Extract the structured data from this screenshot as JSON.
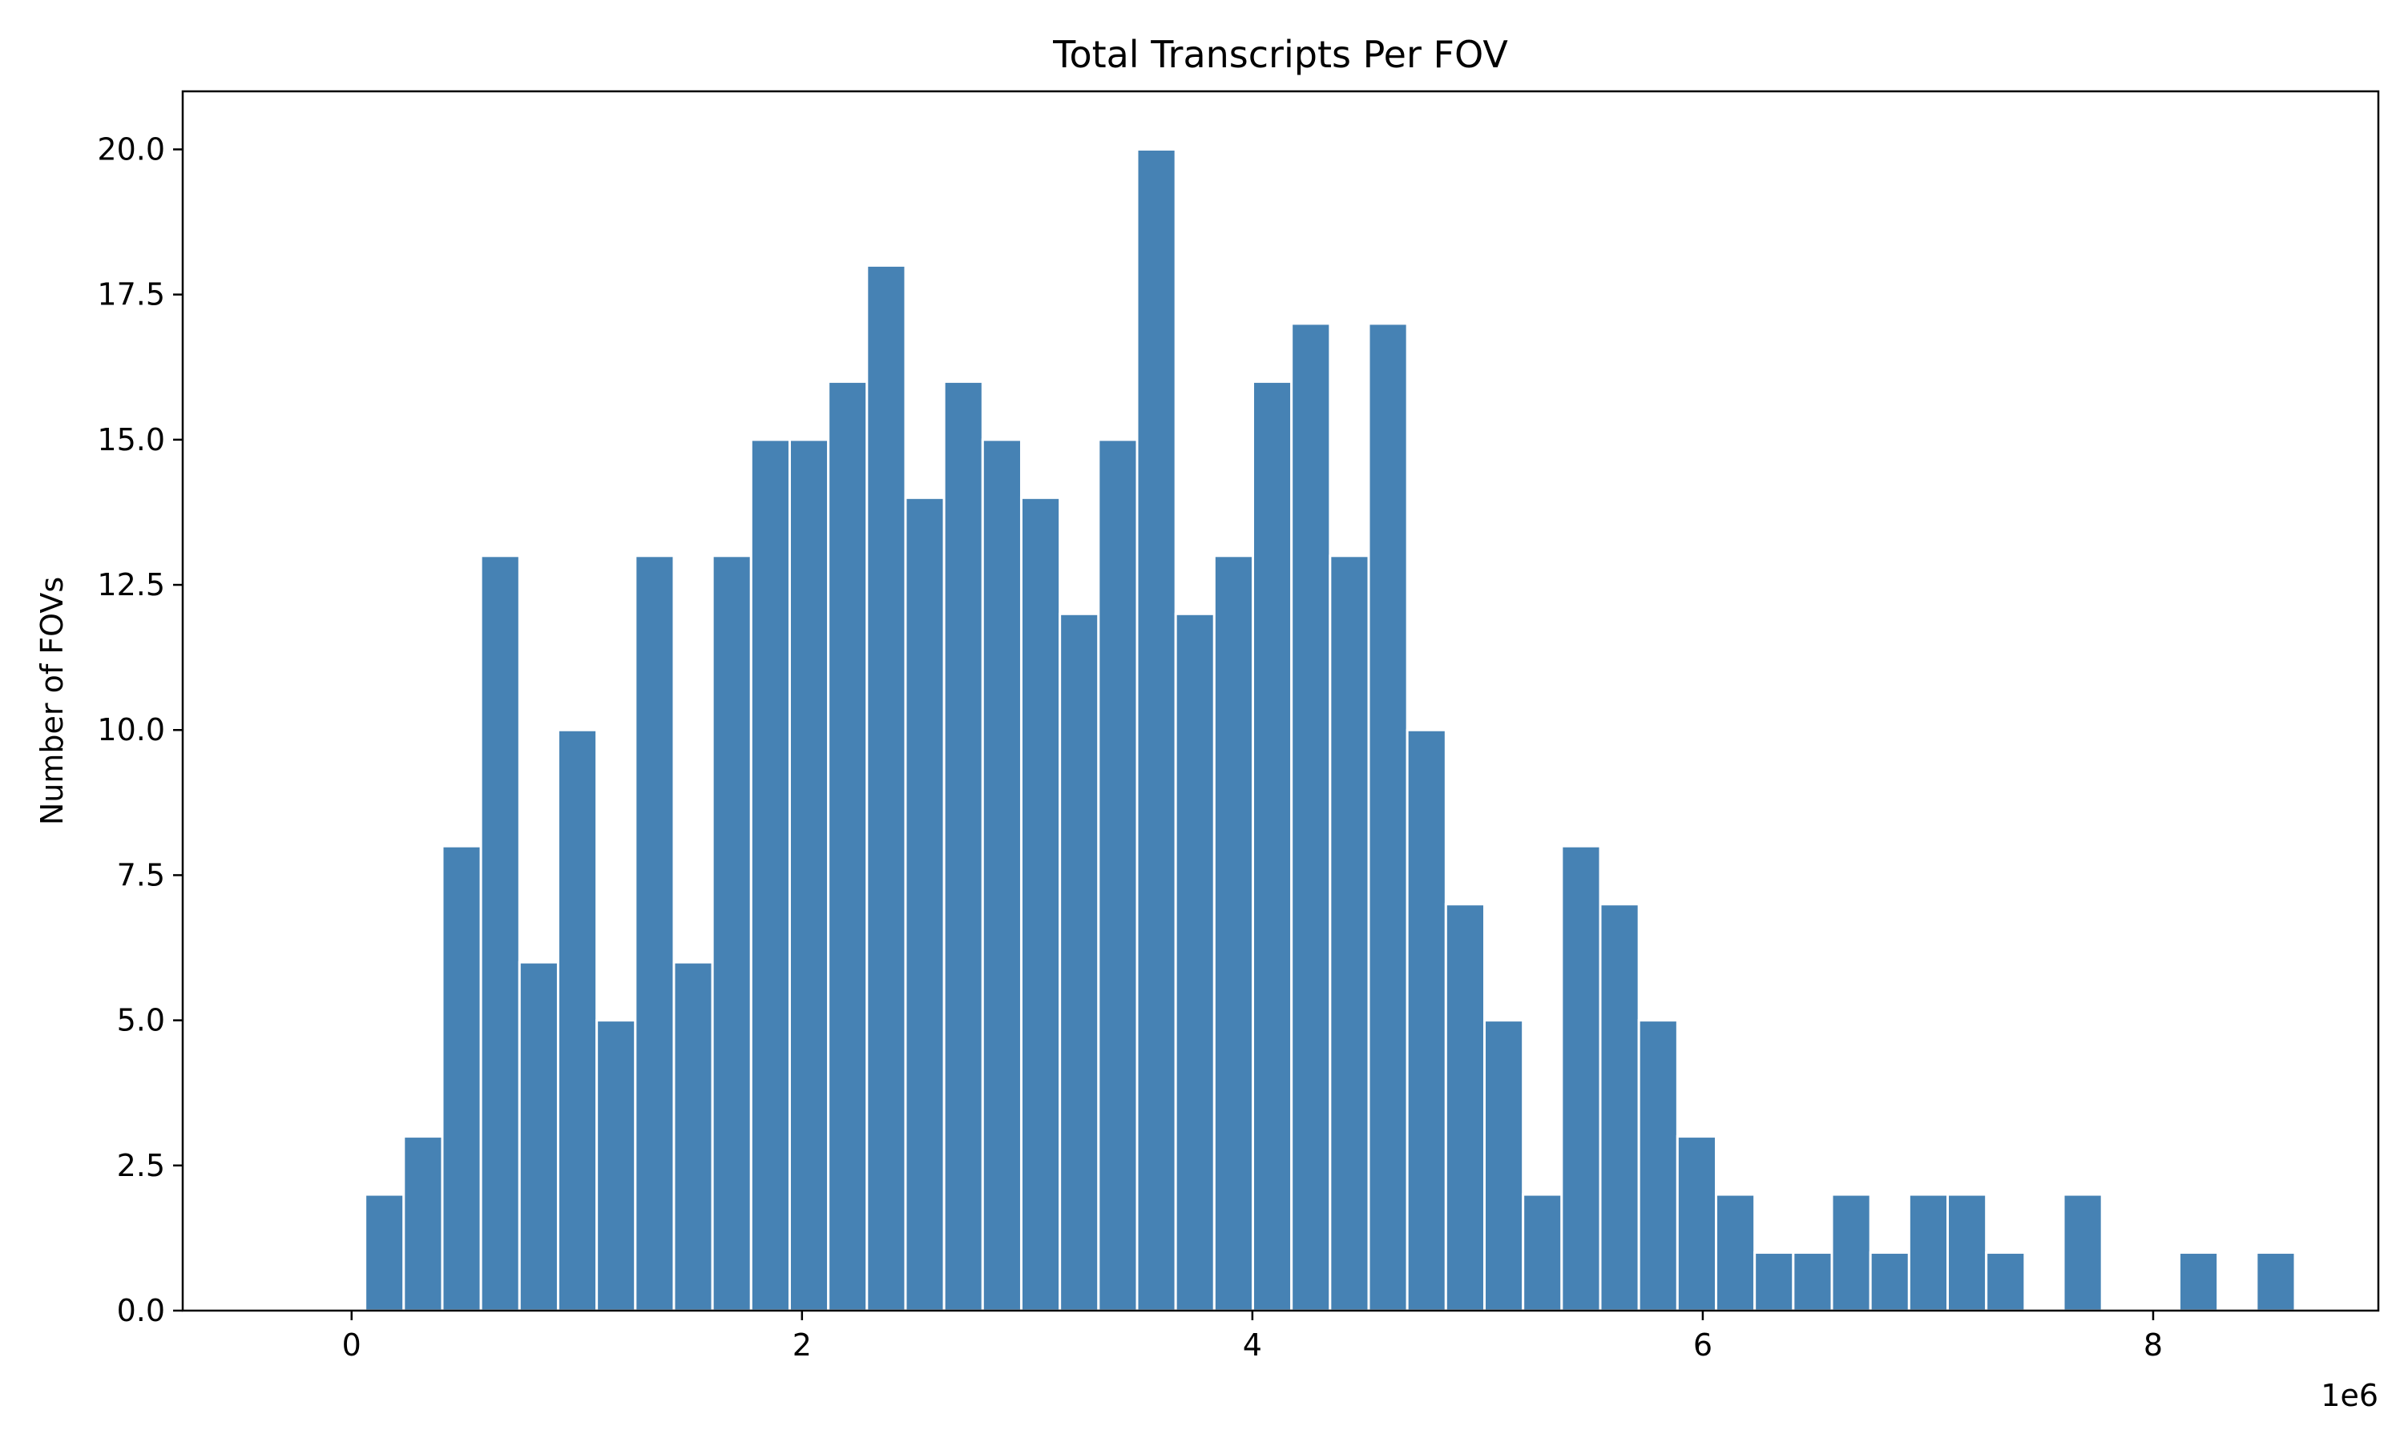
{
  "chart_data": {
    "type": "bar",
    "title": "Total Transcripts Per FOV",
    "xlabel": "",
    "ylabel": "Number of FOVs",
    "x_offset_label": "1e6",
    "xlim": [
      -0.75,
      9.0
    ],
    "ylim": [
      0,
      21.0
    ],
    "x_ticks": [
      0,
      2,
      4,
      6,
      8
    ],
    "x_tick_labels": [
      "0",
      "2",
      "4",
      "6",
      "8"
    ],
    "y_ticks": [
      0,
      2.5,
      5,
      7.5,
      10,
      12.5,
      15,
      17.5,
      20
    ],
    "y_tick_labels": [
      "0.0",
      "2.5",
      "5.0",
      "7.5",
      "10.0",
      "12.5",
      "15.0",
      "17.5",
      "20.0"
    ],
    "bar_color": "#4682b4",
    "bin_start": 0.06,
    "bin_width": 0.1714,
    "values": [
      2,
      3,
      8,
      13,
      6,
      10,
      5,
      13,
      6,
      13,
      15,
      15,
      16,
      18,
      14,
      16,
      15,
      14,
      12,
      15,
      20,
      12,
      13,
      16,
      17,
      13,
      17,
      10,
      7,
      5,
      2,
      8,
      7,
      5,
      3,
      2,
      1,
      1,
      2,
      1,
      2,
      2,
      1,
      0,
      2,
      0,
      0,
      1,
      0,
      1
    ]
  }
}
